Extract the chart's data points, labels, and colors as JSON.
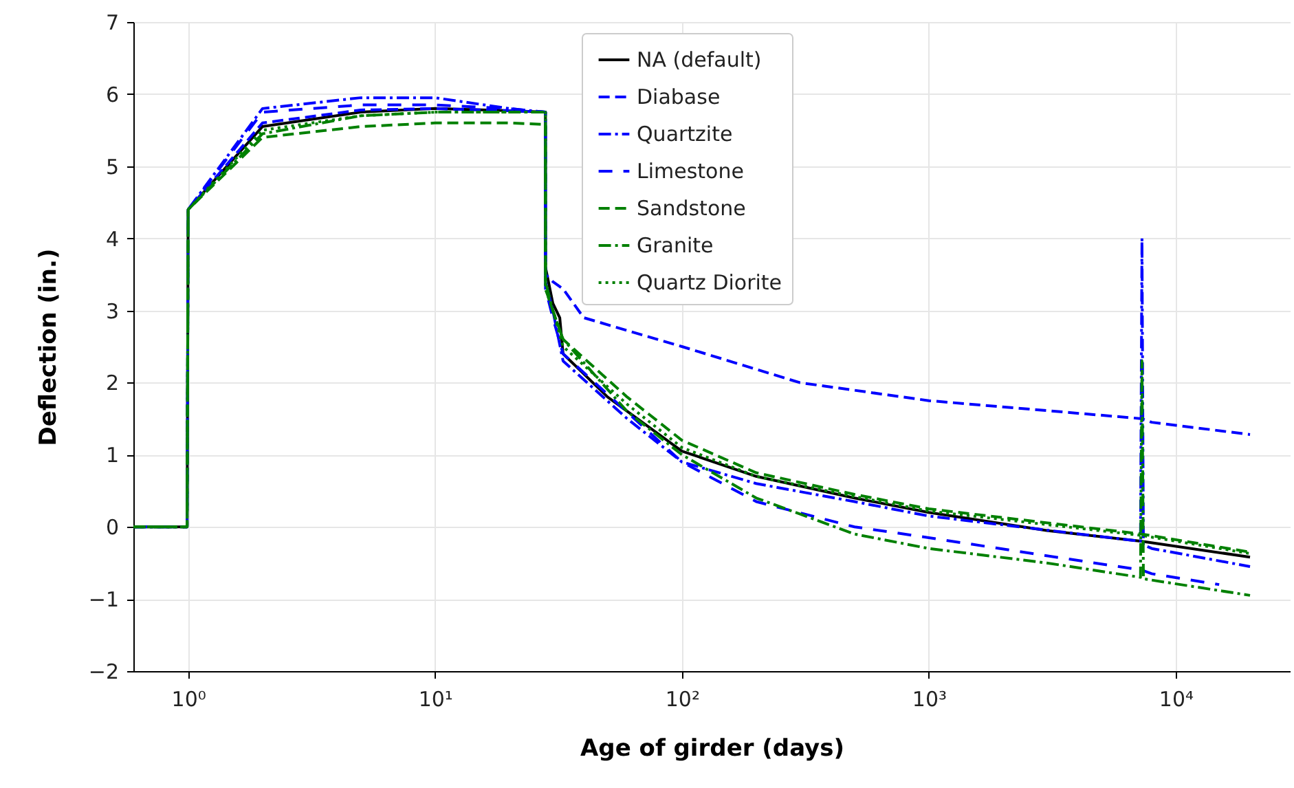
{
  "chart_data": {
    "type": "line",
    "xlabel": "Age of girder (days)",
    "ylabel": "Deflection (in.)",
    "log": "x",
    "grid": true,
    "legend": "top",
    "xlim": [
      0.6,
      29000
    ],
    "ylim": [
      -2,
      7
    ],
    "xticks": [
      {
        "value": 1,
        "label": "10⁰"
      },
      {
        "value": 10,
        "label": "10¹"
      },
      {
        "value": 100,
        "label": "10²"
      },
      {
        "value": 1000,
        "label": "10³"
      },
      {
        "value": 10000,
        "label": "10⁴"
      }
    ],
    "yticks": [
      -2,
      -1,
      0,
      1,
      2,
      3,
      4,
      5,
      6,
      7
    ],
    "series": [
      {
        "name": "NA (default)",
        "color": "#000000",
        "line_style": "solid",
        "x": [
          0.6,
          0.99,
          1,
          2,
          5,
          10,
          20,
          28,
          28.01,
          30,
          32,
          33,
          50,
          100,
          200,
          500,
          1000,
          3000,
          7300,
          20000
        ],
        "values": [
          0,
          0,
          4.4,
          5.55,
          5.75,
          5.8,
          5.77,
          5.75,
          3.6,
          3.1,
          2.9,
          2.4,
          1.8,
          1.05,
          0.7,
          0.4,
          0.2,
          -0.05,
          -0.2,
          -0.42
        ]
      },
      {
        "name": "Diabase",
        "color": "#0000ff",
        "line_style": "dashed",
        "x": [
          0.6,
          0.99,
          1,
          2,
          5,
          10,
          20,
          28,
          28.01,
          30,
          33,
          40,
          100,
          300,
          1000,
          7300,
          8000,
          20000
        ],
        "values": [
          0,
          0,
          4.4,
          5.6,
          5.78,
          5.8,
          5.77,
          5.75,
          3.5,
          3.4,
          3.3,
          2.9,
          2.5,
          2.0,
          1.75,
          1.5,
          1.45,
          1.28
        ]
      },
      {
        "name": "Quartzite",
        "color": "#0000ff",
        "line_style": "dashdot",
        "x": [
          0.6,
          0.99,
          1,
          2,
          5,
          10,
          20,
          28,
          28.01,
          30,
          33,
          60,
          100,
          200,
          500,
          1000,
          7200,
          7300,
          7400,
          8000,
          20000
        ],
        "values": [
          0,
          0,
          4.4,
          5.8,
          5.95,
          5.95,
          5.8,
          5.75,
          3.4,
          3.0,
          2.3,
          1.5,
          0.9,
          0.6,
          0.35,
          0.15,
          -0.2,
          4.0,
          -0.25,
          -0.3,
          -0.55
        ]
      },
      {
        "name": "Limestone",
        "color": "#0000ff",
        "line_style": "loosely dashed",
        "x": [
          0.6,
          0.99,
          1,
          2,
          5,
          10,
          20,
          28,
          28.01,
          30,
          33,
          100,
          200,
          500,
          1000,
          3000,
          7300,
          8000,
          15000
        ],
        "values": [
          0,
          0,
          4.4,
          5.75,
          5.85,
          5.85,
          5.8,
          5.75,
          3.3,
          2.9,
          2.4,
          0.9,
          0.35,
          0.0,
          -0.15,
          -0.4,
          -0.6,
          -0.65,
          -0.8
        ]
      },
      {
        "name": "Sandstone",
        "color": "#008000",
        "line_style": "dashed",
        "x": [
          0.6,
          0.99,
          1,
          2,
          5,
          10,
          20,
          28,
          28.01,
          30,
          33,
          60,
          100,
          200,
          500,
          1000,
          7300,
          20000
        ],
        "values": [
          0,
          0,
          4.4,
          5.4,
          5.55,
          5.6,
          5.6,
          5.58,
          3.3,
          3.0,
          2.6,
          1.8,
          1.2,
          0.75,
          0.45,
          0.25,
          -0.1,
          -0.35
        ]
      },
      {
        "name": "Granite",
        "color": "#008000",
        "line_style": "dashdot",
        "x": [
          0.6,
          0.99,
          1,
          2,
          5,
          10,
          20,
          28,
          28.01,
          30,
          33,
          60,
          100,
          200,
          500,
          1000,
          3000,
          7200,
          7300,
          7400,
          20000
        ],
        "values": [
          0,
          0,
          4.4,
          5.45,
          5.7,
          5.75,
          5.75,
          5.75,
          3.4,
          3.0,
          2.6,
          1.6,
          1.0,
          0.4,
          -0.1,
          -0.3,
          -0.5,
          -0.7,
          2.3,
          -0.72,
          -0.95
        ]
      },
      {
        "name": "Quartz Diorite",
        "color": "#008000",
        "line_style": "dotted",
        "x": [
          0.6,
          0.99,
          1,
          2,
          5,
          10,
          20,
          28,
          28.01,
          30,
          33,
          60,
          100,
          200,
          500,
          1000,
          7300,
          20000
        ],
        "values": [
          0,
          0,
          4.4,
          5.5,
          5.7,
          5.75,
          5.75,
          5.75,
          3.3,
          3.0,
          2.5,
          1.7,
          1.1,
          0.7,
          0.42,
          0.22,
          -0.12,
          -0.37
        ]
      }
    ]
  }
}
